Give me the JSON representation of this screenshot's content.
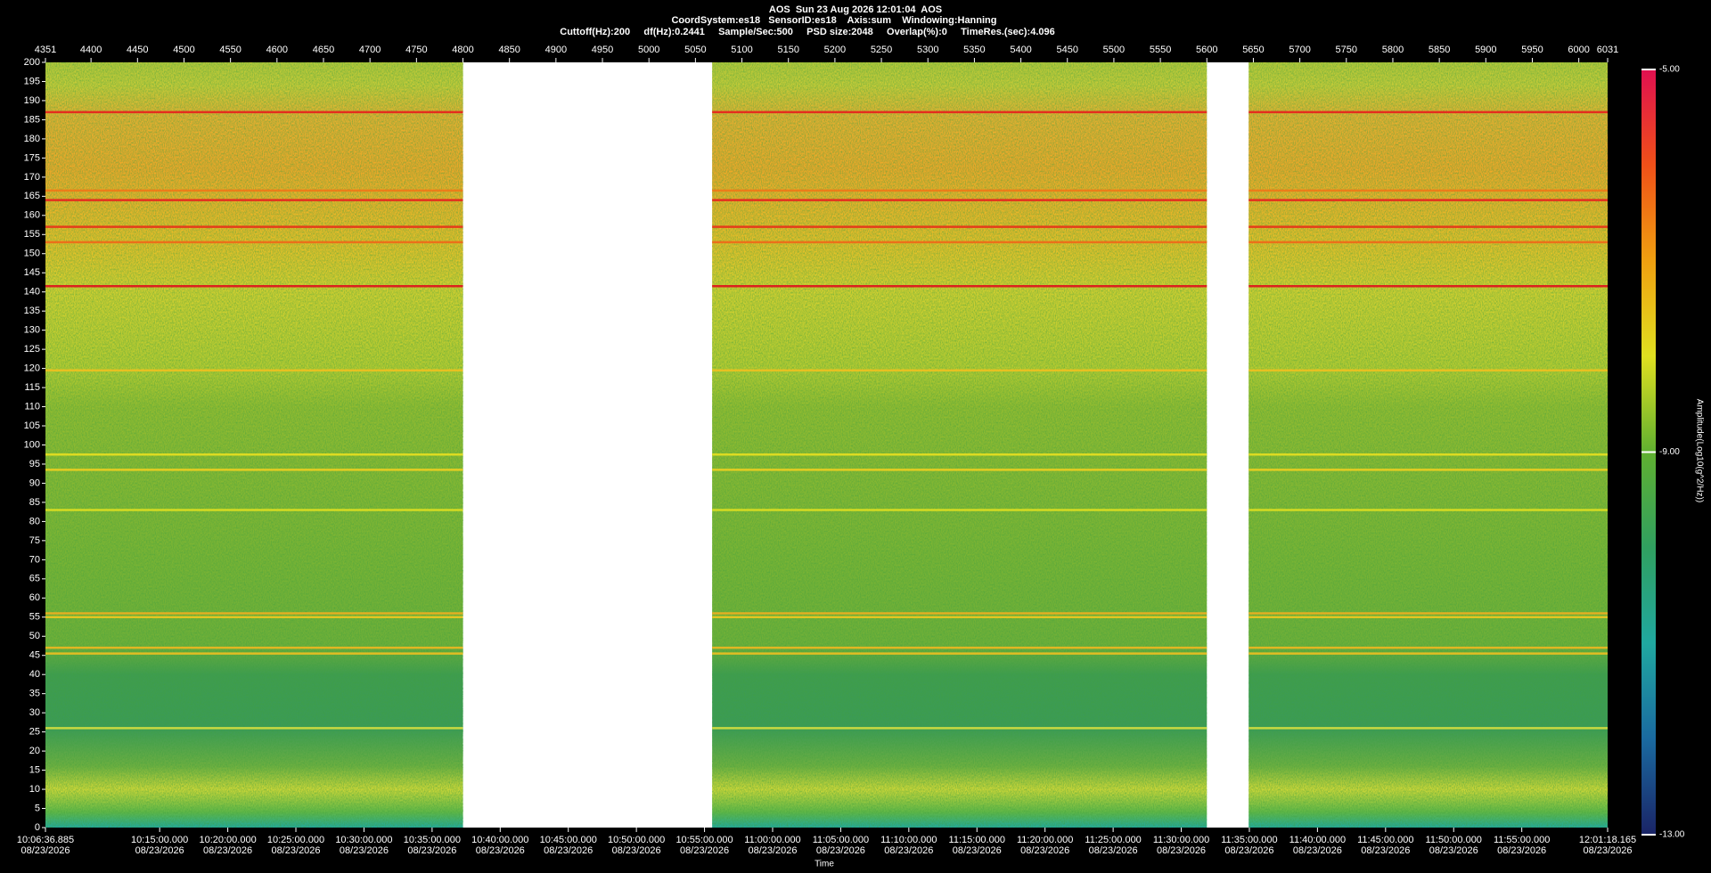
{
  "chart_data": {
    "type": "spectrogram",
    "title": "AOS  Sun 23 Aug 2026 12:01:04  AOS",
    "subtitle": "CoordSystem:es18   SensorID:es18    Axis:sum    Windowing:Hanning",
    "settings_line": "Cuttoff(Hz):200     df(Hz):0.2441     Sample/Sec:500     PSD size:2048     Overlap(%):0     TimeRes.(sec):4.096",
    "xlabel": "Time",
    "colorbar_label": "Amplitude(Log10(g^2/Hz))",
    "xlim": [
      4351,
      6031
    ],
    "xticks": [
      4351,
      4400,
      4450,
      4500,
      4550,
      4600,
      4650,
      4700,
      4750,
      4800,
      4850,
      4900,
      4950,
      5000,
      5050,
      5100,
      5150,
      5200,
      5250,
      5300,
      5350,
      5400,
      5450,
      5500,
      5550,
      5600,
      5650,
      5700,
      5750,
      5800,
      5850,
      5900,
      5950,
      6000,
      6031
    ],
    "ylim": [
      0,
      200
    ],
    "yticks": [
      0,
      5,
      10,
      15,
      20,
      25,
      30,
      35,
      40,
      45,
      50,
      55,
      60,
      65,
      70,
      75,
      80,
      85,
      90,
      95,
      100,
      105,
      110,
      115,
      120,
      125,
      130,
      135,
      140,
      145,
      150,
      155,
      160,
      165,
      170,
      175,
      180,
      185,
      190,
      195,
      200
    ],
    "time_ticks": [
      {
        "time": "10:06:36.885",
        "date": "08/23/2026"
      },
      {
        "time": "10:15:00.000",
        "date": "08/23/2026"
      },
      {
        "time": "10:20:00.000",
        "date": "08/23/2026"
      },
      {
        "time": "10:25:00.000",
        "date": "08/23/2026"
      },
      {
        "time": "10:30:00.000",
        "date": "08/23/2026"
      },
      {
        "time": "10:35:00.000",
        "date": "08/23/2026"
      },
      {
        "time": "10:40:00.000",
        "date": "08/23/2026"
      },
      {
        "time": "10:45:00.000",
        "date": "08/23/2026"
      },
      {
        "time": "10:50:00.000",
        "date": "08/23/2026"
      },
      {
        "time": "10:55:00.000",
        "date": "08/23/2026"
      },
      {
        "time": "11:00:00.000",
        "date": "08/23/2026"
      },
      {
        "time": "11:05:00.000",
        "date": "08/23/2026"
      },
      {
        "time": "11:10:00.000",
        "date": "08/23/2026"
      },
      {
        "time": "11:15:00.000",
        "date": "08/23/2026"
      },
      {
        "time": "11:20:00.000",
        "date": "08/23/2026"
      },
      {
        "time": "11:25:00.000",
        "date": "08/23/2026"
      },
      {
        "time": "11:30:00.000",
        "date": "08/23/2026"
      },
      {
        "time": "11:35:00.000",
        "date": "08/23/2026"
      },
      {
        "time": "11:40:00.000",
        "date": "08/23/2026"
      },
      {
        "time": "11:45:00.000",
        "date": "08/23/2026"
      },
      {
        "time": "11:50:00.000",
        "date": "08/23/2026"
      },
      {
        "time": "11:55:00.000",
        "date": "08/23/2026"
      },
      {
        "time": "12:01:18.165",
        "date": "08/23/2026"
      }
    ],
    "segments": [
      [
        4351,
        4800
      ],
      [
        5068,
        5600
      ],
      [
        5645,
        6031
      ]
    ],
    "tones": [
      {
        "freq": 187,
        "color": "#e8201c"
      },
      {
        "freq": 166.5,
        "color": "#f07818"
      },
      {
        "freq": 164,
        "color": "#e8201c"
      },
      {
        "freq": 157,
        "color": "#e83018"
      },
      {
        "freq": 153,
        "color": "#f06818"
      },
      {
        "freq": 141.5,
        "color": "#e0101c"
      },
      {
        "freq": 119.5,
        "color": "#f0c020"
      },
      {
        "freq": 97.5,
        "color": "#e8e020"
      },
      {
        "freq": 93.5,
        "color": "#f0d020"
      },
      {
        "freq": 83,
        "color": "#e0e020"
      },
      {
        "freq": 56,
        "color": "#f0b020"
      },
      {
        "freq": 55,
        "color": "#f0c820"
      },
      {
        "freq": 47,
        "color": "#f0b820"
      },
      {
        "freq": 45.5,
        "color": "#f0c020"
      },
      {
        "freq": 26,
        "color": "#d8e040"
      }
    ],
    "clim": [
      -13,
      -5
    ],
    "cticks": [
      {
        "value": -5,
        "label": "-5.00"
      },
      {
        "value": -9,
        "label": "-9.00"
      },
      {
        "value": -13,
        "label": "-13.00"
      }
    ],
    "colormap": [
      "#1a2466",
      "#1a6aa0",
      "#20a8a0",
      "#30a060",
      "#60b030",
      "#e0e020",
      "#f0a010",
      "#f05018",
      "#e01050"
    ]
  }
}
